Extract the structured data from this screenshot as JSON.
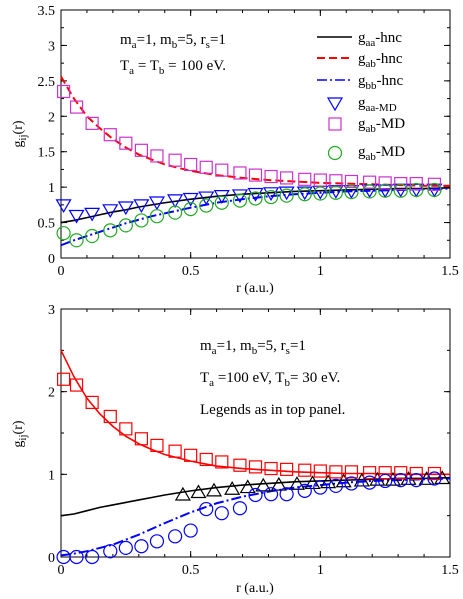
{
  "chart_data": [
    {
      "type": "line",
      "panel": "top",
      "xlabel": "r (a.u.)",
      "ylabel": "g_ij(r)",
      "xlim": [
        0,
        1.5
      ],
      "ylim": [
        0,
        3.5
      ],
      "xticks": [
        "0",
        "0.5",
        "1",
        "1.5"
      ],
      "yticks": [
        "0",
        "0.5",
        "1",
        "1.5",
        "2",
        "2.5",
        "3",
        "3.5"
      ],
      "annotations": [
        "m_a=1, m_b=5, r_s=1",
        "T_a = T_b = 100 eV."
      ],
      "legend_position": "top-right",
      "series": [
        {
          "name": "g_aa-hnc",
          "style": "solid",
          "color": "#000000",
          "x": [
            0,
            0.05,
            0.1,
            0.15,
            0.2,
            0.25,
            0.3,
            0.35,
            0.4,
            0.5,
            0.6,
            0.7,
            0.8,
            0.9,
            1.0,
            1.1,
            1.2,
            1.3,
            1.4,
            1.5
          ],
          "y": [
            0.5,
            0.53,
            0.57,
            0.61,
            0.65,
            0.68,
            0.72,
            0.75,
            0.78,
            0.83,
            0.87,
            0.9,
            0.92,
            0.94,
            0.95,
            0.96,
            0.97,
            0.98,
            0.98,
            0.99
          ]
        },
        {
          "name": "g_ab-hnc",
          "style": "dashed",
          "color": "#ff0000",
          "x": [
            0,
            0.05,
            0.1,
            0.15,
            0.2,
            0.25,
            0.3,
            0.35,
            0.4,
            0.5,
            0.6,
            0.7,
            0.8,
            0.9,
            1.0,
            1.1,
            1.2,
            1.3,
            1.4,
            1.5
          ],
          "y": [
            2.56,
            2.25,
            2.0,
            1.83,
            1.68,
            1.56,
            1.46,
            1.39,
            1.32,
            1.23,
            1.17,
            1.13,
            1.1,
            1.08,
            1.06,
            1.05,
            1.04,
            1.03,
            1.02,
            1.02
          ]
        },
        {
          "name": "g_bb-hnc",
          "style": "dashdot",
          "color": "#0000ff",
          "x": [
            0,
            0.05,
            0.1,
            0.15,
            0.2,
            0.25,
            0.3,
            0.35,
            0.4,
            0.5,
            0.6,
            0.7,
            0.8,
            0.9,
            1.0,
            1.1,
            1.2,
            1.3,
            1.4,
            1.5
          ],
          "y": [
            0.18,
            0.25,
            0.31,
            0.37,
            0.43,
            0.49,
            0.54,
            0.59,
            0.63,
            0.71,
            0.78,
            0.83,
            0.87,
            0.9,
            0.92,
            0.94,
            0.95,
            0.96,
            0.97,
            0.98
          ]
        },
        {
          "name": "g_aa-MD",
          "marker": "triangle-down",
          "color": "#0000ff",
          "x": [
            0.01,
            0.06,
            0.12,
            0.19,
            0.25,
            0.31,
            0.37,
            0.44,
            0.5,
            0.56,
            0.62,
            0.69,
            0.75,
            0.81,
            0.87,
            0.94,
            1.0,
            1.06,
            1.12,
            1.19,
            1.25,
            1.31,
            1.37,
            1.44
          ],
          "y": [
            0.75,
            0.6,
            0.63,
            0.68,
            0.72,
            0.75,
            0.79,
            0.82,
            0.84,
            0.86,
            0.88,
            0.89,
            0.91,
            0.92,
            0.93,
            0.93,
            0.94,
            0.95,
            0.95,
            0.96,
            0.96,
            0.97,
            0.97,
            0.97
          ]
        },
        {
          "name": "g_ab-MD",
          "marker": "square",
          "color": "#cc33cc",
          "x": [
            0.01,
            0.06,
            0.12,
            0.19,
            0.25,
            0.31,
            0.37,
            0.44,
            0.5,
            0.56,
            0.62,
            0.69,
            0.75,
            0.81,
            0.87,
            0.94,
            1.0,
            1.06,
            1.12,
            1.19,
            1.25,
            1.31,
            1.37,
            1.44
          ],
          "y": [
            2.35,
            2.13,
            1.9,
            1.74,
            1.62,
            1.52,
            1.44,
            1.38,
            1.32,
            1.28,
            1.24,
            1.2,
            1.17,
            1.15,
            1.13,
            1.11,
            1.1,
            1.09,
            1.08,
            1.07,
            1.06,
            1.05,
            1.05,
            1.04
          ]
        },
        {
          "name": "g_ab-MD",
          "marker": "circle",
          "color": "#22aa22",
          "x": [
            0.01,
            0.06,
            0.12,
            0.19,
            0.25,
            0.31,
            0.37,
            0.44,
            0.5,
            0.56,
            0.62,
            0.69,
            0.75,
            0.81,
            0.87,
            0.94,
            1.0,
            1.06,
            1.12,
            1.19,
            1.25,
            1.31,
            1.37,
            1.44
          ],
          "y": [
            0.35,
            0.25,
            0.31,
            0.39,
            0.46,
            0.53,
            0.59,
            0.64,
            0.69,
            0.74,
            0.78,
            0.81,
            0.84,
            0.86,
            0.88,
            0.9,
            0.91,
            0.92,
            0.93,
            0.94,
            0.95,
            0.95,
            0.96,
            0.96
          ]
        }
      ]
    },
    {
      "type": "line",
      "panel": "bottom",
      "xlabel": "r (a.u.)",
      "ylabel": "g_ij(r)",
      "xlim": [
        0,
        1.5
      ],
      "ylim": [
        0,
        3
      ],
      "xticks": [
        "0",
        "0.5",
        "1",
        "1.5"
      ],
      "yticks": [
        "0",
        "1",
        "2",
        "3"
      ],
      "annotations": [
        "m_a=1, m_b=5, r_s=1",
        "T_a =100 eV, T_b= 30 eV.",
        "Legends as in top panel."
      ],
      "series": [
        {
          "name": "g_aa-hnc",
          "style": "solid",
          "color": "#000000",
          "x": [
            0,
            0.05,
            0.1,
            0.15,
            0.2,
            0.25,
            0.3,
            0.35,
            0.4,
            0.5,
            0.6,
            0.7,
            0.8,
            0.9,
            1.0,
            1.1,
            1.2,
            1.3,
            1.4,
            1.5
          ],
          "y": [
            0.5,
            0.52,
            0.56,
            0.6,
            0.63,
            0.66,
            0.69,
            0.72,
            0.75,
            0.8,
            0.84,
            0.87,
            0.89,
            0.91,
            0.92,
            0.93,
            0.94,
            0.95,
            0.95,
            0.96
          ]
        },
        {
          "name": "g_ab-hnc",
          "style": "solid",
          "color": "#ff0000",
          "x": [
            0,
            0.05,
            0.1,
            0.15,
            0.2,
            0.25,
            0.3,
            0.35,
            0.4,
            0.5,
            0.6,
            0.7,
            0.8,
            0.9,
            1.0,
            1.1,
            1.2,
            1.3,
            1.4,
            1.5
          ],
          "y": [
            2.5,
            2.18,
            1.92,
            1.73,
            1.58,
            1.46,
            1.37,
            1.3,
            1.24,
            1.16,
            1.1,
            1.07,
            1.05,
            1.03,
            1.02,
            1.01,
            1.01,
            1.0,
            1.0,
            1.0
          ]
        },
        {
          "name": "g_bb-hnc",
          "style": "dashdot",
          "color": "#0000ff",
          "x": [
            0,
            0.05,
            0.1,
            0.15,
            0.2,
            0.25,
            0.3,
            0.35,
            0.4,
            0.5,
            0.6,
            0.7,
            0.8,
            0.9,
            1.0,
            1.1,
            1.2,
            1.3,
            1.4,
            1.5
          ],
          "y": [
            0.02,
            0.04,
            0.07,
            0.11,
            0.15,
            0.21,
            0.27,
            0.34,
            0.41,
            0.54,
            0.65,
            0.73,
            0.79,
            0.84,
            0.87,
            0.9,
            0.92,
            0.93,
            0.94,
            0.95
          ]
        },
        {
          "name": "g_aa-MD",
          "marker": "triangle-up",
          "color": "#000000",
          "x": [
            0.47,
            0.53,
            0.59,
            0.66,
            0.72,
            0.78,
            0.84,
            0.91,
            0.97,
            1.03,
            1.09,
            1.16,
            1.22,
            1.28,
            1.34,
            1.41,
            1.47
          ],
          "y": [
            0.75,
            0.78,
            0.8,
            0.82,
            0.84,
            0.86,
            0.87,
            0.88,
            0.89,
            0.9,
            0.91,
            0.92,
            0.93,
            0.93,
            0.94,
            0.94,
            0.95
          ]
        },
        {
          "name": "g_ab-MD",
          "marker": "square",
          "color": "#ff0000",
          "x": [
            0.01,
            0.06,
            0.12,
            0.19,
            0.25,
            0.31,
            0.37,
            0.44,
            0.5,
            0.56,
            0.62,
            0.69,
            0.75,
            0.81,
            0.87,
            0.94,
            1.0,
            1.06,
            1.12,
            1.19,
            1.25,
            1.31,
            1.37,
            1.44
          ],
          "y": [
            2.15,
            2.08,
            1.87,
            1.7,
            1.55,
            1.43,
            1.35,
            1.28,
            1.23,
            1.18,
            1.15,
            1.11,
            1.09,
            1.07,
            1.06,
            1.05,
            1.04,
            1.03,
            1.03,
            1.02,
            1.02,
            1.02,
            1.01,
            1.01
          ]
        },
        {
          "name": "g_bb-MD",
          "marker": "circle",
          "color": "#0000ff",
          "x": [
            0.01,
            0.06,
            0.12,
            0.19,
            0.25,
            0.31,
            0.37,
            0.44,
            0.5,
            0.56,
            0.62,
            0.69,
            0.75,
            0.81,
            0.87,
            0.94,
            1.0,
            1.06,
            1.12,
            1.19,
            1.25,
            1.31,
            1.37,
            1.44
          ],
          "y": [
            0.0,
            0.0,
            0.0,
            0.07,
            0.11,
            0.13,
            0.19,
            0.25,
            0.32,
            0.58,
            0.53,
            0.59,
            0.75,
            0.76,
            0.76,
            0.8,
            0.84,
            0.86,
            0.89,
            0.9,
            0.92,
            0.93,
            0.93,
            0.95
          ]
        }
      ]
    }
  ],
  "top_labels": {
    "annotation_line1_parts": [
      "m",
      "a",
      "=1,  m",
      "b",
      "=5, r",
      "s",
      "=1"
    ],
    "annotation_line2_parts": [
      "T",
      "a",
      " = T",
      "b",
      " = 100 eV."
    ],
    "legend": [
      {
        "main": "g",
        "sub": "aa",
        "rest": "-hnc"
      },
      {
        "main": "g",
        "sub": "ab",
        "rest": "-hnc"
      },
      {
        "main": "g",
        "sub": "bb",
        "rest": "-hnc"
      },
      {
        "main": "g",
        "sub": "aa-MD",
        "rest": ""
      },
      {
        "main": "g",
        "sub": "ab",
        "rest": "-MD"
      },
      {
        "main": "g",
        "sub": "ab",
        "rest": "-MD"
      }
    ],
    "ylabel_main": "g",
    "ylabel_sub": "ij",
    "ylabel_rest": "(r)",
    "xlabel": "r (a.u.)"
  },
  "bottom_labels": {
    "annotation_line1_parts": [
      "m",
      "a",
      "=1,  m",
      "b",
      "=5, r",
      "s",
      "=1"
    ],
    "annotation_line2_parts": [
      "T",
      "a",
      " =100 eV, T",
      "b",
      "= 30 eV."
    ],
    "annotation_line3": "Legends as in top panel.",
    "ylabel_main": "g",
    "ylabel_sub": "ij",
    "ylabel_rest": "(r)",
    "xlabel": "r (a.u.)"
  }
}
